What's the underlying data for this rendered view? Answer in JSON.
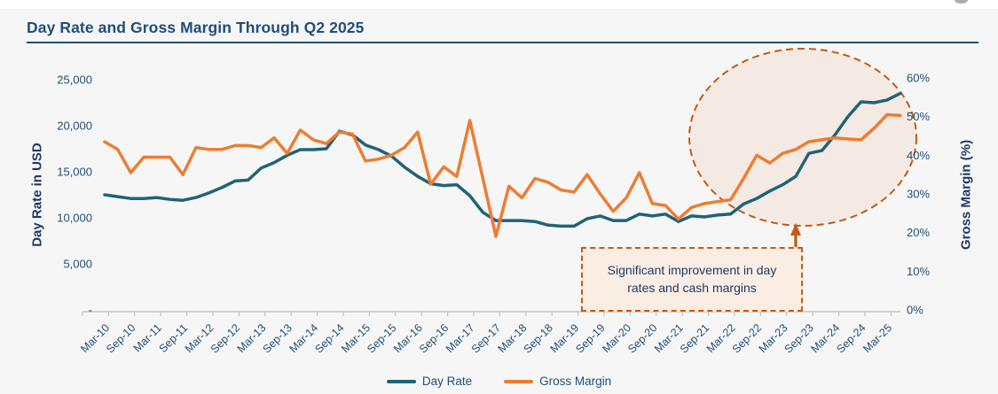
{
  "page": {
    "background": "#F6F6F6",
    "top_band": "#FFFFFF"
  },
  "header": {
    "title": "Day Rate and Gross Margin Through Q2 2025",
    "title_color": "#1F4E79"
  },
  "annotation": {
    "line1": "Significant improvement in day",
    "line2": "rates and cash margins",
    "box_border_color": "#C55A11",
    "box_fill_color": "#FAEEE4"
  },
  "legend": {
    "items": [
      "Day Rate",
      "Gross Margin"
    ]
  },
  "chart_data": {
    "type": "line",
    "title": "Day Rate and Gross Margin Through Q2 2025",
    "x_frequency": "quarterly (Mar-10 through Jun-25, labels every 2nd quarter)",
    "grid": "off",
    "legend_position": "bottom-center",
    "highlight_color": "#C55A11",
    "x_tick_labels": [
      "Mar-10",
      "Sep-10",
      "Mar-11",
      "Sep-11",
      "Mar-12",
      "Sep-12",
      "Mar-13",
      "Sep-13",
      "Mar-14",
      "Sep-14",
      "Mar-15",
      "Sep-15",
      "Mar-16",
      "Sep-16",
      "Mar-17",
      "Sep-17",
      "Mar-18",
      "Sep-18",
      "Mar-19",
      "Sep-19",
      "Mar-20",
      "Sep-20",
      "Mar-21",
      "Sep-21",
      "Mar-22",
      "Sep-22",
      "Mar-23",
      "Sep-23",
      "Mar-24",
      "Sep-24",
      "Mar-25"
    ],
    "series": [
      {
        "name": "Day Rate",
        "axis": "left",
        "color": "#1F6378",
        "values": [
          12500,
          12300,
          12100,
          12100,
          12200,
          12000,
          11900,
          12200,
          12700,
          13300,
          14000,
          14100,
          15400,
          16000,
          16800,
          17400,
          17400,
          17500,
          19400,
          19000,
          17900,
          17400,
          16700,
          15500,
          14500,
          13700,
          13500,
          13600,
          12400,
          10600,
          9700,
          9700,
          9700,
          9600,
          9200,
          9100,
          9100,
          9900,
          10200,
          9700,
          9700,
          10400,
          10200,
          10400,
          9600,
          10200,
          10100,
          10300,
          10400,
          11500,
          12100,
          12900,
          13600,
          14500,
          17000,
          17300,
          19000,
          21000,
          22600,
          22500,
          22800,
          23500
        ]
      },
      {
        "name": "Gross Margin",
        "axis": "right",
        "color": "#ED7D31",
        "values": [
          43.5,
          41.5,
          35.5,
          39.5,
          39.5,
          39.5,
          35.0,
          42.0,
          41.5,
          41.5,
          42.5,
          42.5,
          42.0,
          44.5,
          40.5,
          46.5,
          44.0,
          43.0,
          46.0,
          45.5,
          38.5,
          39.0,
          40.0,
          42.0,
          46.0,
          32.5,
          37.0,
          34.5,
          49.0,
          34.0,
          19.0,
          32.0,
          29.0,
          34.0,
          33.0,
          31.0,
          30.5,
          35.0,
          30.0,
          25.5,
          29.0,
          35.5,
          27.5,
          27.0,
          23.5,
          26.5,
          27.5,
          28.0,
          28.5,
          34.0,
          40.0,
          38.0,
          40.5,
          41.5,
          43.5,
          44.0,
          44.5,
          44.2,
          44.0,
          47.0,
          50.5,
          50.3
        ]
      }
    ],
    "left_axis": {
      "label": "Day Rate in USD",
      "min": 0,
      "max": 25000,
      "ticks": [
        {
          "label": "25,000",
          "value": 25000
        },
        {
          "label": "20,000",
          "value": 20000
        },
        {
          "label": "15,000",
          "value": 15000
        },
        {
          "label": "10,000",
          "value": 10000
        },
        {
          "label": "5,000",
          "value": 5000
        },
        {
          "label": "-",
          "value": 0
        }
      ]
    },
    "right_axis": {
      "label": "Gross Margin (%)",
      "min": 0,
      "max": 60,
      "ticks": [
        {
          "label": "60%",
          "value": 60
        },
        {
          "label": "50%",
          "value": 50
        },
        {
          "label": "40%",
          "value": 40
        },
        {
          "label": "30%",
          "value": 30
        },
        {
          "label": "20%",
          "value": 20
        },
        {
          "label": "10%",
          "value": 10
        },
        {
          "label": "0%",
          "value": 0
        }
      ]
    }
  }
}
